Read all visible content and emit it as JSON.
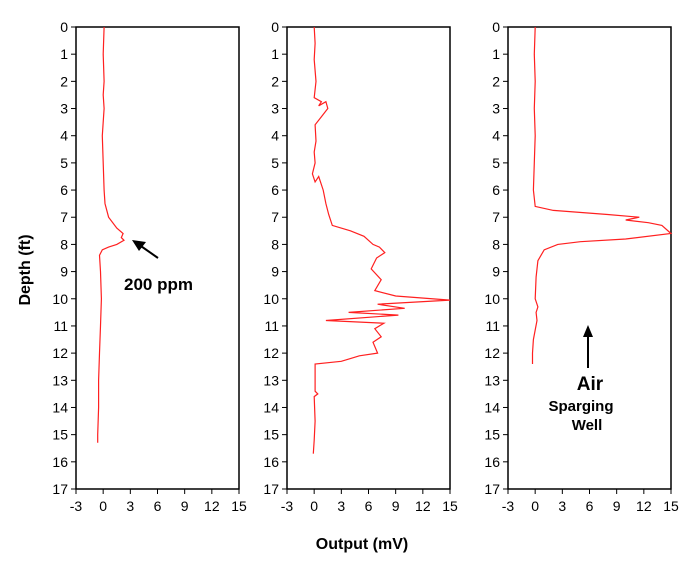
{
  "chart_data": {
    "type": "line",
    "ylabel": "Depth (ft)",
    "xlabel": "Output (mV)",
    "y_ticks": [
      "0",
      "1",
      "2",
      "3",
      "4",
      "5",
      "6",
      "7",
      "8",
      "9",
      "10",
      "11",
      "12",
      "13",
      "14",
      "15",
      "16",
      "17"
    ],
    "x_ticks": [
      "-3",
      "0",
      "3",
      "6",
      "9",
      "12",
      "15"
    ],
    "ylim": [
      0,
      17
    ],
    "xlim": [
      -3,
      15
    ],
    "y_inverted": true,
    "grid": false,
    "line_color": "#ff2020",
    "panels": [
      {
        "name": "",
        "annotation": "200 ppm",
        "annotation_point": {
          "x": 2.1,
          "depth": 7.8
        },
        "points": [
          [
            0.1,
            0.0
          ],
          [
            0.0,
            1.0
          ],
          [
            0.1,
            2.0
          ],
          [
            0.0,
            2.5
          ],
          [
            0.1,
            3.0
          ],
          [
            -0.1,
            4.0
          ],
          [
            0.0,
            5.0
          ],
          [
            0.1,
            6.0
          ],
          [
            0.2,
            6.5
          ],
          [
            0.6,
            7.0
          ],
          [
            1.5,
            7.4
          ],
          [
            2.2,
            7.6
          ],
          [
            2.0,
            7.75
          ],
          [
            2.3,
            7.85
          ],
          [
            1.5,
            8.0
          ],
          [
            0.6,
            8.1
          ],
          [
            -0.1,
            8.2
          ],
          [
            -0.4,
            8.4
          ],
          [
            -0.3,
            9.0
          ],
          [
            -0.2,
            10.0
          ],
          [
            -0.3,
            11.0
          ],
          [
            -0.4,
            12.0
          ],
          [
            -0.5,
            13.0
          ],
          [
            -0.5,
            14.0
          ],
          [
            -0.6,
            15.0
          ],
          [
            -0.6,
            15.3
          ]
        ]
      },
      {
        "name": "",
        "points": [
          [
            0.0,
            0.0
          ],
          [
            0.1,
            0.6
          ],
          [
            0.0,
            1.2
          ],
          [
            0.2,
            2.0
          ],
          [
            0.0,
            2.6
          ],
          [
            0.8,
            2.75
          ],
          [
            0.5,
            2.9
          ],
          [
            1.3,
            2.75
          ],
          [
            1.5,
            3.0
          ],
          [
            0.8,
            3.3
          ],
          [
            0.1,
            3.6
          ],
          [
            0.2,
            4.2
          ],
          [
            0.0,
            4.6
          ],
          [
            0.1,
            5.0
          ],
          [
            -0.2,
            5.4
          ],
          [
            0.1,
            5.7
          ],
          [
            0.5,
            5.5
          ],
          [
            1.0,
            6.0
          ],
          [
            1.3,
            6.5
          ],
          [
            1.6,
            6.9
          ],
          [
            2.0,
            7.3
          ],
          [
            4.0,
            7.5
          ],
          [
            5.5,
            7.7
          ],
          [
            6.5,
            8.0
          ],
          [
            7.2,
            8.1
          ],
          [
            7.8,
            8.3
          ],
          [
            6.9,
            8.5
          ],
          [
            6.3,
            8.9
          ],
          [
            7.4,
            9.3
          ],
          [
            6.7,
            9.7
          ],
          [
            9.0,
            9.9
          ],
          [
            15.0,
            10.05
          ],
          [
            7.0,
            10.2
          ],
          [
            10.0,
            10.35
          ],
          [
            3.8,
            10.5
          ],
          [
            9.3,
            10.6
          ],
          [
            1.3,
            10.8
          ],
          [
            7.7,
            10.9
          ],
          [
            6.7,
            11.1
          ],
          [
            7.4,
            11.4
          ],
          [
            6.5,
            11.6
          ],
          [
            7.0,
            12.0
          ],
          [
            5.0,
            12.1
          ],
          [
            4.0,
            12.2
          ],
          [
            3.0,
            12.3
          ],
          [
            0.1,
            12.4
          ],
          [
            0.1,
            13.4
          ],
          [
            0.4,
            13.5
          ],
          [
            0.0,
            13.6
          ],
          [
            0.1,
            14.5
          ],
          [
            0.0,
            15.2
          ],
          [
            -0.1,
            15.7
          ]
        ]
      },
      {
        "name": "",
        "annotation": "Air Sparging Well",
        "annotation_lines": [
          "Air",
          "Sparging",
          "Well"
        ],
        "points": [
          [
            0.0,
            0.0
          ],
          [
            -0.1,
            1.0
          ],
          [
            0.0,
            2.0
          ],
          [
            -0.1,
            3.0
          ],
          [
            0.0,
            4.0
          ],
          [
            -0.1,
            5.0
          ],
          [
            -0.2,
            6.0
          ],
          [
            0.0,
            6.6
          ],
          [
            2.0,
            6.75
          ],
          [
            8.0,
            6.9
          ],
          [
            11.5,
            7.0
          ],
          [
            10.0,
            7.1
          ],
          [
            12.5,
            7.2
          ],
          [
            14.0,
            7.3
          ],
          [
            15.0,
            7.6
          ],
          [
            10.0,
            7.8
          ],
          [
            5.0,
            7.9
          ],
          [
            2.5,
            8.0
          ],
          [
            1.0,
            8.2
          ],
          [
            0.3,
            8.6
          ],
          [
            0.1,
            9.2
          ],
          [
            0.0,
            10.0
          ],
          [
            0.3,
            10.3
          ],
          [
            0.1,
            10.5
          ],
          [
            0.2,
            10.8
          ],
          [
            -0.2,
            11.5
          ],
          [
            -0.3,
            12.0
          ],
          [
            -0.3,
            12.4
          ]
        ]
      }
    ]
  }
}
